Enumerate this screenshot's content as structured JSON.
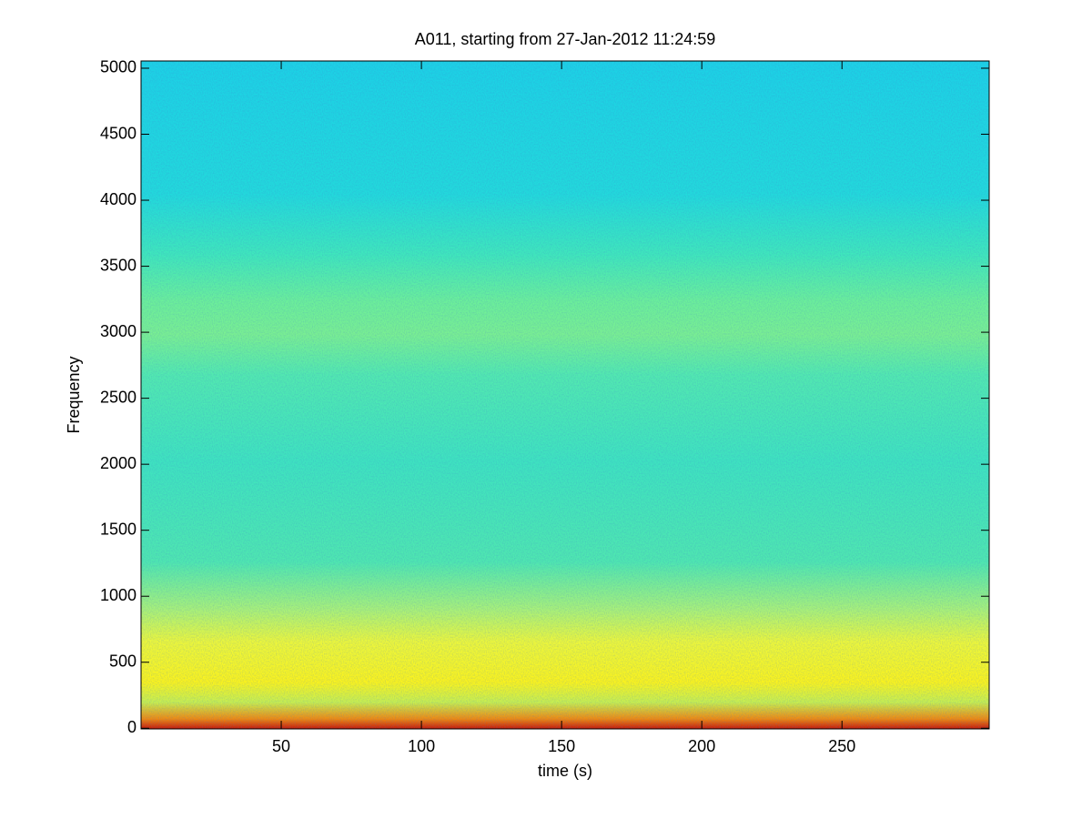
{
  "chart_data": {
    "type": "spectrogram",
    "title": "A011, starting from 27-Jan-2012 11:24:59",
    "x_label": "time (s)",
    "y_label": "Frequency",
    "xlim": [
      0,
      302.5
    ],
    "xticks": [
      50,
      100,
      150,
      200,
      250
    ],
    "ylim": [
      -5,
      5055
    ],
    "yticks": [
      0,
      500,
      1000,
      1500,
      2000,
      2500,
      3000,
      3500,
      4000,
      4500,
      5000
    ]
  }
}
